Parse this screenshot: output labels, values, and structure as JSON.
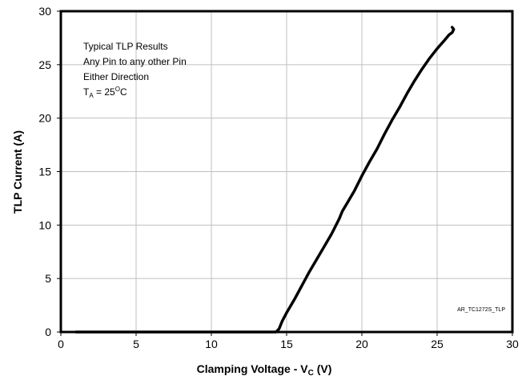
{
  "chart_data": {
    "type": "line",
    "title": "",
    "xlabel": {
      "main": "Clamping Voltage - V",
      "sub": "C",
      "unit": " (V)"
    },
    "ylabel": "TLP Current (A)",
    "xlim": [
      0,
      30
    ],
    "ylim": [
      0,
      30
    ],
    "xticks": [
      0,
      5,
      10,
      15,
      20,
      25,
      30
    ],
    "yticks": [
      0,
      5,
      10,
      15,
      20,
      25,
      30
    ],
    "grid": true,
    "legend": "none",
    "series": [
      {
        "color": "#000000",
        "x": [
          1.0,
          5,
          10,
          14.3,
          14.5,
          14.7,
          15.0,
          15.5,
          16.0,
          16.5,
          17.0,
          17.5,
          18.0,
          18.5,
          18.7,
          19.0,
          19.5,
          20.0,
          20.5,
          21.0,
          21.5,
          22.0,
          22.5,
          23.0,
          23.5,
          24.0,
          24.5,
          25.0,
          25.5,
          25.8,
          26.0,
          26.1,
          26.0
        ],
        "y": [
          0,
          0,
          0,
          0,
          0.3,
          1.0,
          1.8,
          3.0,
          4.3,
          5.6,
          6.8,
          8.0,
          9.2,
          10.6,
          11.3,
          12.0,
          13.2,
          14.6,
          15.9,
          17.1,
          18.5,
          19.8,
          21.0,
          22.3,
          23.5,
          24.6,
          25.6,
          26.5,
          27.3,
          27.8,
          28.0,
          28.3,
          28.5
        ]
      }
    ]
  },
  "annotation": {
    "lines": [
      "Typical TLP Results",
      "Any Pin to any other Pin",
      "Either Direction"
    ],
    "temp": {
      "t": "T",
      "sub": "A",
      "eq": " = 25",
      "sup": "O",
      "unit": "C"
    }
  },
  "reference_code": "AR_TC1272S_TLP",
  "colors": {
    "line": "#000000",
    "grid": "#bfbfbf",
    "frame": "#000000",
    "background": "#ffffff"
  }
}
